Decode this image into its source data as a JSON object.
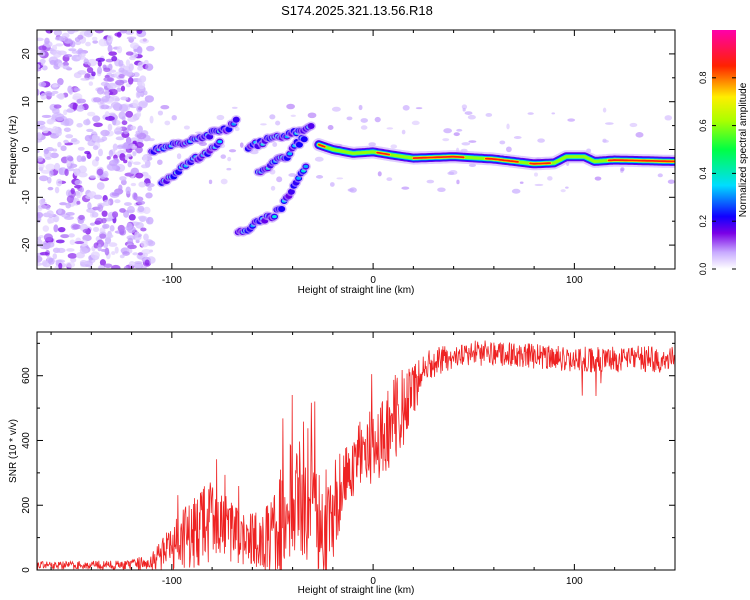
{
  "title": "S174.2025.321.13.56.R18",
  "chart_data": [
    {
      "type": "heatmap",
      "name": "spectrogram",
      "xlabel": "Height of straight line (km)",
      "ylabel": "Frequency (Hz)",
      "xlim": [
        -167,
        150
      ],
      "ylim": [
        -25,
        25
      ],
      "xticks": [
        -100,
        0,
        100
      ],
      "xtick_labels": [
        "-100",
        "0",
        "100"
      ],
      "yticks": [
        -20,
        -10,
        0,
        10,
        20
      ],
      "ytick_labels": [
        "-20",
        "-10",
        "0",
        "10",
        "20"
      ],
      "colorbar": {
        "label": "Normalized spectral amplitude",
        "range": [
          0,
          1
        ],
        "ticks": [
          0.0,
          0.2,
          0.4,
          0.6,
          0.8
        ],
        "tick_labels": [
          "0.0",
          "0.2",
          "0.4",
          "0.6",
          "0.8"
        ],
        "colors": [
          "#ffffff",
          "#b899ff",
          "#7a00e6",
          "#0000ff",
          "#00ffff",
          "#00ff00",
          "#ffff00",
          "#ff0000",
          "#ff00aa"
        ]
      },
      "features": {
        "noise_region_x": [
          -167,
          -110
        ],
        "main_trace": [
          [
            -27,
            1.0
          ],
          [
            -20,
            0.0
          ],
          [
            -10,
            -0.8
          ],
          [
            0,
            -0.5
          ],
          [
            10,
            -1.2
          ],
          [
            20,
            -1.8
          ],
          [
            40,
            -1.5
          ],
          [
            60,
            -2.0
          ],
          [
            70,
            -2.5
          ],
          [
            80,
            -3.0
          ],
          [
            90,
            -2.8
          ],
          [
            96,
            -1.5
          ],
          [
            105,
            -1.5
          ],
          [
            110,
            -2.5
          ],
          [
            120,
            -2.2
          ],
          [
            150,
            -2.5
          ]
        ],
        "branch_upper": [
          [
            -110,
            0.0
          ],
          [
            -100,
            1.0
          ],
          [
            -90,
            2.0
          ],
          [
            -82,
            3.0
          ],
          [
            -75,
            4.0
          ],
          [
            -70,
            5.0
          ],
          [
            -67,
            6.5
          ]
        ],
        "branch_lower": [
          [
            -105,
            -7.5
          ],
          [
            -98,
            -5.0
          ],
          [
            -90,
            -2.5
          ],
          [
            -82,
            -0.5
          ],
          [
            -75,
            1.5
          ]
        ],
        "branch_mid": [
          [
            -62,
            0.5
          ],
          [
            -55,
            1.5
          ],
          [
            -48,
            2.5
          ],
          [
            -42,
            3.0
          ],
          [
            -35,
            4.0
          ],
          [
            -30,
            5.5
          ]
        ],
        "branch_side": [
          [
            -57,
            -5.0
          ],
          [
            -50,
            -3.0
          ],
          [
            -43,
            -1.5
          ],
          [
            -38,
            1.0
          ],
          [
            -33,
            3.0
          ]
        ],
        "branch_deep": [
          [
            -67,
            -17.5
          ],
          [
            -60,
            -16.0
          ],
          [
            -53,
            -14.5
          ],
          [
            -47,
            -13.0
          ],
          [
            -42,
            -10.0
          ],
          [
            -38,
            -7.0
          ],
          [
            -33,
            -3.0
          ]
        ]
      }
    },
    {
      "type": "line",
      "name": "snr",
      "xlabel": "Height of straight line (km)",
      "ylabel": "SNR (10 * v/v)",
      "xlim": [
        -167,
        150
      ],
      "ylim": [
        0,
        735
      ],
      "xticks": [
        -100,
        0,
        100
      ],
      "xtick_labels": [
        "-100",
        "0",
        "100"
      ],
      "yticks": [
        0,
        200,
        400,
        600
      ],
      "ytick_labels": [
        "0",
        "200",
        "400",
        "600"
      ],
      "color": "#ee2222",
      "series": [
        {
          "name": "SNR",
          "x": [
            -167,
            -120,
            -110,
            -105,
            -100,
            -95,
            -90,
            -85,
            -80,
            -75,
            -70,
            -65,
            -60,
            -55,
            -50,
            -45,
            -40,
            -35,
            -30,
            -25,
            -20,
            -15,
            -10,
            -5,
            0,
            5,
            10,
            15,
            20,
            25,
            30,
            40,
            50,
            60,
            70,
            80,
            90,
            100,
            110,
            120,
            130,
            140,
            150
          ],
          "base": [
            15,
            15,
            30,
            50,
            70,
            95,
            110,
            130,
            150,
            130,
            110,
            100,
            90,
            85,
            95,
            120,
            200,
            250,
            220,
            150,
            130,
            260,
            320,
            360,
            380,
            400,
            470,
            500,
            560,
            620,
            640,
            660,
            670,
            670,
            665,
            660,
            655,
            650,
            650,
            650,
            655,
            650,
            650
          ],
          "amp": [
            12,
            15,
            30,
            50,
            70,
            90,
            110,
            130,
            120,
            110,
            100,
            90,
            80,
            100,
            140,
            180,
            230,
            240,
            220,
            200,
            180,
            120,
            100,
            110,
            120,
            130,
            150,
            120,
            90,
            60,
            45,
            40,
            40,
            40,
            40,
            40,
            40,
            40,
            40,
            40,
            40,
            40,
            40
          ]
        }
      ]
    }
  ]
}
